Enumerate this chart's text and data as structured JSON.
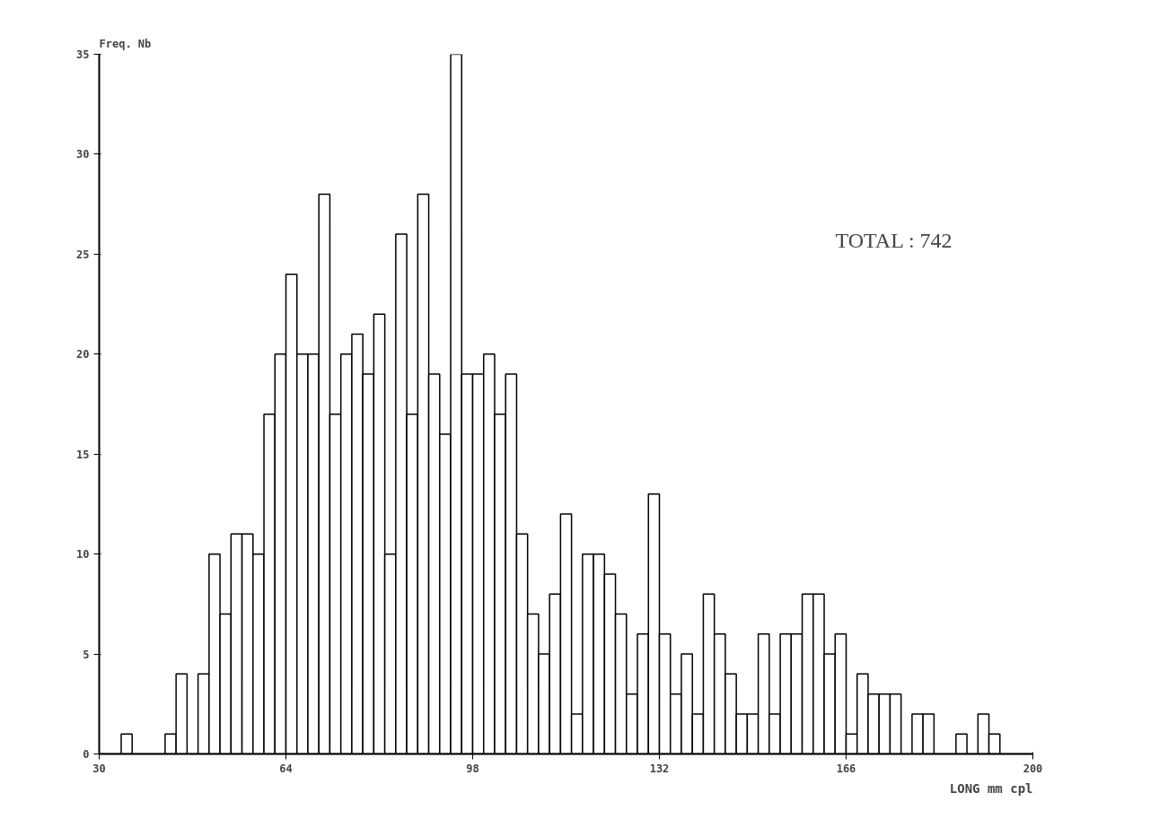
{
  "chart_data": {
    "type": "histogram",
    "ylabel": "Freq. Nb",
    "xlabel": "LONG mm",
    "bins": [
      30,
      32,
      34,
      36,
      38,
      40,
      42,
      44,
      46,
      48,
      50,
      52,
      54,
      56,
      58,
      60,
      62,
      64,
      66,
      68,
      70,
      72,
      74,
      76,
      78,
      80,
      82,
      84,
      86,
      88,
      90,
      92,
      94,
      96,
      98,
      100,
      102,
      104,
      106,
      108,
      110,
      112,
      114,
      116,
      118,
      120,
      122,
      124,
      126,
      128,
      130,
      132,
      134,
      136,
      138,
      140,
      142,
      144,
      146,
      148,
      150,
      152,
      154,
      156,
      158,
      160,
      162,
      164,
      166,
      168,
      170,
      172,
      174,
      176,
      178,
      180,
      182,
      184,
      186,
      188,
      190,
      192,
      194,
      196,
      198,
      200
    ],
    "values": [
      0,
      0,
      1,
      0,
      0,
      0,
      1,
      4,
      0,
      4,
      10,
      7,
      11,
      11,
      10,
      17,
      20,
      24,
      20,
      20,
      28,
      17,
      20,
      21,
      19,
      22,
      10,
      26,
      17,
      28,
      19,
      16,
      35,
      19,
      19,
      20,
      17,
      19,
      11,
      7,
      5,
      8,
      12,
      2,
      10,
      10,
      9,
      7,
      3,
      6,
      13,
      6,
      3,
      5,
      2,
      8,
      6,
      4,
      2,
      2,
      6,
      2,
      6,
      6,
      8,
      8,
      5,
      6,
      1,
      4,
      3,
      3,
      3,
      0,
      2,
      2,
      0,
      0,
      1,
      0,
      2,
      1,
      0,
      0,
      0
    ],
    "color": "#000000",
    "xlim": [
      30,
      200
    ],
    "xticks": [
      30,
      64,
      98,
      132,
      166,
      200
    ],
    "ylim": [
      0,
      35
    ],
    "yticks": [
      0,
      5,
      10,
      15,
      20,
      25,
      30,
      35
    ],
    "annotations": [
      "TOTAL : 742",
      "cpl"
    ]
  }
}
